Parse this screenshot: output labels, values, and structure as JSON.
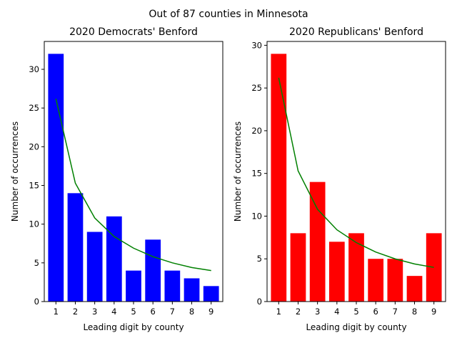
{
  "figure": {
    "suptitle": "Out of 87 counties in Minnesota"
  },
  "chart_data": [
    {
      "type": "bar",
      "title": "2020 Democrats' Benford",
      "xlabel": "Leading digit by county",
      "ylabel": "Number of occurrences",
      "categories": [
        "1",
        "2",
        "3",
        "4",
        "5",
        "6",
        "7",
        "8",
        "9"
      ],
      "x": [
        1,
        2,
        3,
        4,
        5,
        6,
        7,
        8,
        9
      ],
      "ylim": [
        0,
        33.6
      ],
      "yticks": [
        0,
        5,
        10,
        15,
        20,
        25,
        30
      ],
      "bar_color": "#0000ff",
      "series": [
        {
          "kind": "bar",
          "values": [
            32,
            14,
            9,
            11,
            4,
            8,
            4,
            3,
            2
          ]
        },
        {
          "kind": "line",
          "color": "#008000",
          "values": [
            26.2,
            15.3,
            10.8,
            8.4,
            6.9,
            5.8,
            5.0,
            4.4,
            4.0
          ]
        }
      ],
      "grid": false,
      "legend": "none"
    },
    {
      "type": "bar",
      "title": "2020 Republicans' Benford",
      "xlabel": "Leading digit by county",
      "ylabel": "Number of occurrences",
      "categories": [
        "1",
        "2",
        "3",
        "4",
        "5",
        "6",
        "7",
        "8",
        "9"
      ],
      "x": [
        1,
        2,
        3,
        4,
        5,
        6,
        7,
        8,
        9
      ],
      "ylim": [
        0,
        30.45
      ],
      "yticks": [
        0,
        5,
        10,
        15,
        20,
        25,
        30
      ],
      "bar_color": "#ff0000",
      "series": [
        {
          "kind": "bar",
          "values": [
            29,
            8,
            14,
            7,
            8,
            5,
            5,
            3,
            8
          ]
        },
        {
          "kind": "line",
          "color": "#008000",
          "values": [
            26.2,
            15.3,
            10.8,
            8.4,
            6.9,
            5.8,
            5.0,
            4.4,
            4.0
          ]
        }
      ],
      "grid": false,
      "legend": "none"
    }
  ]
}
